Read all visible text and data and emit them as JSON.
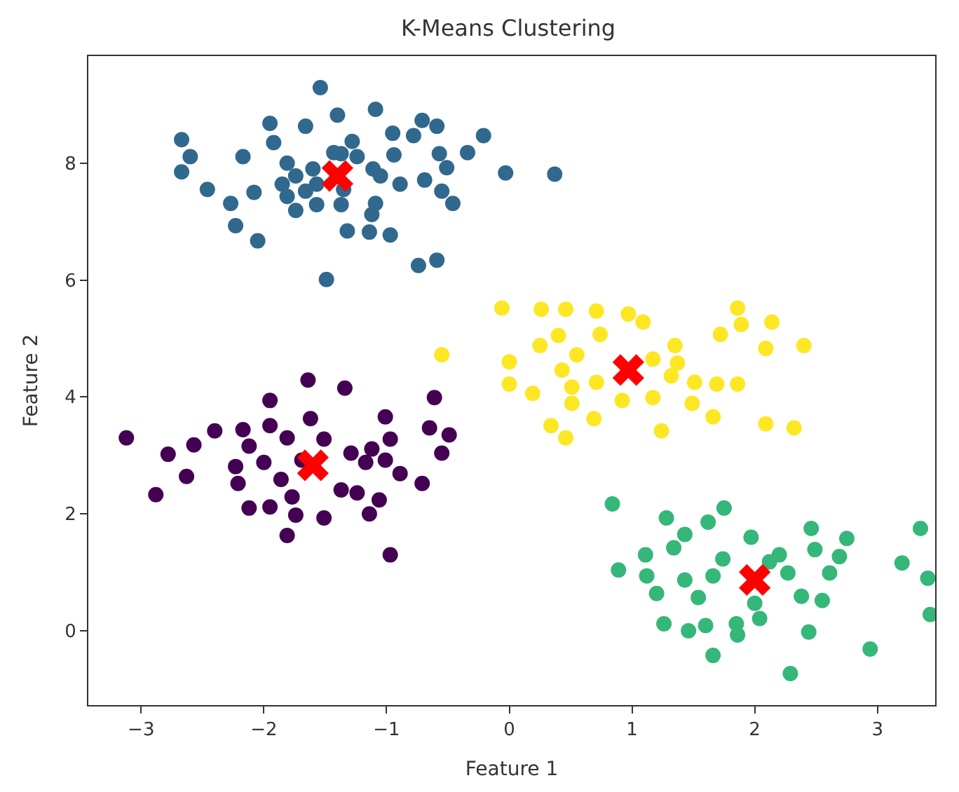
{
  "chart_data": {
    "type": "scatter",
    "title": "K-Means Clustering",
    "xlabel": "Feature 1",
    "ylabel": "Feature 2",
    "xlim": [
      -3.43,
      3.47
    ],
    "ylim": [
      -1.27,
      9.83
    ],
    "xticks": [
      -3,
      -2,
      -1,
      0,
      1,
      2,
      3
    ],
    "yticks": [
      0,
      2,
      4,
      6,
      8
    ],
    "marker": "circle",
    "series": [
      {
        "color": "#31688e",
        "x": [
          -1.54,
          -1.09,
          -1.4,
          -1.95,
          -1.66,
          -0.71,
          -0.59,
          -0.21,
          -2.67,
          -0.95,
          -0.78,
          -1.92,
          -1.28,
          -2.6,
          -2.17,
          -0.34,
          -0.57,
          -0.94,
          -1.37,
          -2.67,
          -1.81,
          -1.74,
          -1.6,
          -1.11,
          -0.51,
          -0.03,
          0.37,
          -1.85,
          -1.57,
          -0.89,
          -0.69,
          -2.46,
          -2.08,
          -1.81,
          -0.55,
          -2.27,
          -1.74,
          -1.57,
          -1.37,
          -1.09,
          -0.46,
          -1.12,
          -2.23,
          -1.32,
          -1.14,
          -0.97,
          -2.05,
          -0.74,
          -0.59,
          -1.49,
          -1.43,
          -1.24,
          -1.05,
          -1.35,
          -1.66
        ],
        "values": [
          9.29,
          8.92,
          8.82,
          8.68,
          8.63,
          8.73,
          8.63,
          8.47,
          8.4,
          8.51,
          8.47,
          8.35,
          8.37,
          8.11,
          8.11,
          8.18,
          8.16,
          8.14,
          8.16,
          7.85,
          8.0,
          7.78,
          7.9,
          7.9,
          7.92,
          7.83,
          7.81,
          7.64,
          7.64,
          7.64,
          7.71,
          7.55,
          7.5,
          7.43,
          7.52,
          7.31,
          7.19,
          7.29,
          7.29,
          7.31,
          7.31,
          7.12,
          6.93,
          6.84,
          6.82,
          6.77,
          6.67,
          6.25,
          6.34,
          6.01,
          8.18,
          8.11,
          7.78,
          7.55,
          7.52
        ]
      },
      {
        "color": "#440154",
        "x": [
          -3.12,
          -2.78,
          -2.57,
          -2.4,
          -2.63,
          -2.88,
          -2.17,
          -2.12,
          -1.95,
          -1.95,
          -1.64,
          -1.34,
          -1.62,
          -1.81,
          -1.51,
          -2.23,
          -2.21,
          -2.0,
          -1.86,
          -2.12,
          -1.95,
          -1.74,
          -1.81,
          -1.51,
          -1.77,
          -1.37,
          -1.24,
          -1.06,
          -1.14,
          -0.89,
          -0.71,
          -1.29,
          -1.12,
          -1.01,
          -0.97,
          -1.01,
          -0.65,
          -0.49,
          -0.55,
          -0.61,
          -0.97,
          -1.17,
          -1.69
        ],
        "values": [
          3.3,
          3.02,
          3.18,
          3.42,
          2.64,
          2.33,
          3.44,
          3.16,
          3.94,
          3.51,
          4.29,
          4.15,
          3.63,
          3.3,
          3.28,
          2.81,
          2.52,
          2.88,
          2.59,
          2.1,
          2.12,
          1.98,
          1.63,
          1.93,
          2.29,
          2.41,
          2.36,
          2.24,
          2.0,
          2.69,
          2.52,
          3.04,
          3.11,
          2.92,
          3.28,
          3.66,
          3.47,
          3.35,
          3.04,
          3.99,
          1.3,
          2.88,
          2.92
        ]
      },
      {
        "color": "#fde725",
        "x": [
          -0.55,
          -0.06,
          0.26,
          0.46,
          0.71,
          0.97,
          1.09,
          1.86,
          1.89,
          2.14,
          1.72,
          2.09,
          2.4,
          0.74,
          0.4,
          0.25,
          0.0,
          0.55,
          1.35,
          0.43,
          0.0,
          0.19,
          0.51,
          0.71,
          0.51,
          0.69,
          0.34,
          0.46,
          0.92,
          1.17,
          1.24,
          1.32,
          1.51,
          1.69,
          1.86,
          1.49,
          1.66,
          2.09,
          2.32,
          1.17,
          1.37
        ],
        "values": [
          4.72,
          5.52,
          5.5,
          5.5,
          5.47,
          5.42,
          5.28,
          5.52,
          5.24,
          5.28,
          5.07,
          4.83,
          4.88,
          5.07,
          5.05,
          4.88,
          4.6,
          4.72,
          4.88,
          4.46,
          4.22,
          4.06,
          4.17,
          4.25,
          3.89,
          3.63,
          3.51,
          3.3,
          3.94,
          3.99,
          3.42,
          4.36,
          4.25,
          4.22,
          4.22,
          3.89,
          3.66,
          3.54,
          3.47,
          4.65,
          4.58
        ]
      },
      {
        "color": "#35b779",
        "x": [
          0.84,
          1.28,
          1.62,
          1.75,
          1.43,
          1.97,
          2.46,
          2.75,
          3.35,
          1.11,
          1.34,
          0.89,
          1.74,
          2.2,
          2.49,
          2.69,
          3.2,
          1.12,
          1.43,
          1.66,
          2.27,
          2.61,
          3.41,
          1.2,
          1.54,
          2.0,
          2.38,
          2.55,
          3.43,
          1.26,
          1.46,
          1.6,
          1.85,
          1.86,
          2.04,
          2.44,
          1.66,
          2.94,
          2.29,
          2.12
        ],
        "values": [
          2.17,
          1.93,
          1.86,
          2.1,
          1.65,
          1.6,
          1.75,
          1.58,
          1.75,
          1.3,
          1.42,
          1.04,
          1.23,
          1.3,
          1.39,
          1.27,
          1.16,
          0.94,
          0.87,
          0.94,
          0.99,
          0.99,
          0.9,
          0.64,
          0.57,
          0.47,
          0.59,
          0.52,
          0.28,
          0.12,
          0.0,
          0.09,
          0.12,
          -0.07,
          0.21,
          -0.02,
          -0.42,
          -0.31,
          -0.73,
          1.18
        ]
      },
      {
        "color": "#ff0000",
        "marker": "cross",
        "x": [
          -1.4,
          -1.6,
          0.97,
          2.0
        ],
        "values": [
          7.78,
          2.83,
          4.46,
          0.87
        ]
      }
    ]
  }
}
